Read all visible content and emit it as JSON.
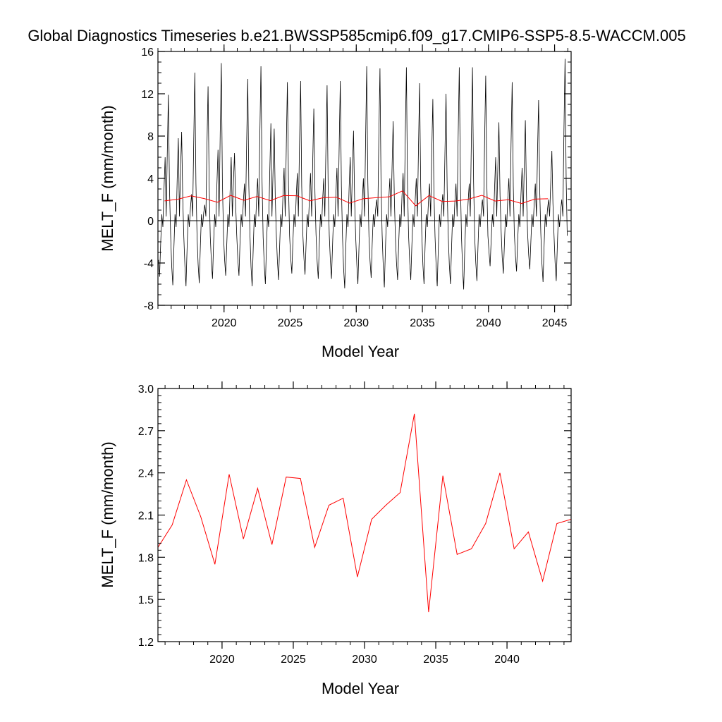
{
  "figure_title": "Global Diagnostics Timeseries b.e21.BWSSP585cmip6.f09_g17.CMIP6-SSP5-8.5-WACCM.005",
  "colors": {
    "monthly": "#000000",
    "annual": "#ff0000",
    "axes": "#000000"
  },
  "chart_data": [
    {
      "type": "line",
      "title": "Global Diagnostics Timeseries b.e21.BWSSP585cmip6.f09_g17.CMIP6-SSP5-8.5-WACCM.005",
      "xlabel": "Model Year",
      "ylabel": "MELT_F (mm/month)",
      "xlim": [
        2015,
        2046.25
      ],
      "ylim": [
        -8,
        16
      ],
      "xticks": [
        2020,
        2025,
        2030,
        2035,
        2040,
        2045
      ],
      "yticks": [
        -8,
        -4,
        0,
        4,
        8,
        12,
        16
      ],
      "reference_line": 0,
      "grid": false,
      "series": [
        {
          "kind": "monthly",
          "color": "#000000",
          "start_year": 2015,
          "months_per_year": 12,
          "yearly_max": [
            11.9,
            8.4,
            14.0,
            12.7,
            14.9,
            6.4,
            13.4,
            14.6,
            8.7,
            13.1,
            13.2,
            10.6,
            12.8,
            13.2,
            8.5,
            14.6,
            14.4,
            9.4,
            14.5,
            13.0,
            11.5,
            12.0,
            14.5,
            14.5,
            13.7,
            9.3,
            13.1,
            9.5,
            11.4,
            6.6,
            15.3
          ],
          "yearly_min": [
            -5.3,
            -6.1,
            -6.2,
            -5.9,
            -5.5,
            -5.2,
            -5.2,
            -6.2,
            -6.0,
            -5.6,
            -5.0,
            -5.1,
            -5.5,
            -5.5,
            -6.4,
            -6.0,
            -5.4,
            -6.3,
            -5.6,
            -5.6,
            -6.0,
            -6.2,
            -6.0,
            -6.5,
            -5.7,
            -4.3,
            -5.0,
            -4.8,
            -4.6,
            -5.8,
            -5.7
          ],
          "yearly_secondary_peak": [
            6.0,
            7.8,
            2.5,
            1.5,
            6.7,
            6.0,
            3.5,
            4.0,
            9.2,
            5.0,
            4.5,
            4.5,
            4.0,
            5.0,
            6.0,
            4.0,
            2.0,
            4.0,
            4.5,
            4.0,
            3.5,
            2.5,
            3.5,
            3.5,
            2.0,
            6.0,
            4.0,
            5.0,
            3.5,
            2.0,
            2.0
          ]
        },
        {
          "kind": "annual",
          "color": "#ff0000",
          "x": [
            2015.5,
            2016.5,
            2017.5,
            2018.5,
            2019.5,
            2020.5,
            2021.5,
            2022.5,
            2023.5,
            2024.5,
            2025.5,
            2026.5,
            2027.5,
            2028.5,
            2029.5,
            2030.5,
            2031.5,
            2032.5,
            2033.5,
            2034.5,
            2035.5,
            2036.5,
            2037.5,
            2038.5,
            2039.5,
            2040.5,
            2041.5,
            2042.5,
            2043.5,
            2044.5
          ],
          "y": [
            1.87,
            2.03,
            2.35,
            2.09,
            1.75,
            2.39,
            1.93,
            2.29,
            1.89,
            2.37,
            2.36,
            1.87,
            2.17,
            2.22,
            1.66,
            2.07,
            2.17,
            2.26,
            2.82,
            1.41,
            2.38,
            1.82,
            1.86,
            2.04,
            2.4,
            1.86,
            1.98,
            1.63,
            2.04,
            2.07
          ]
        }
      ]
    },
    {
      "type": "line",
      "xlabel": "Model Year",
      "ylabel": "MELT_F (mm/month)",
      "xlim": [
        2015.5,
        2044.5
      ],
      "ylim": [
        1.2,
        3.0
      ],
      "xticks": [
        2020,
        2025,
        2030,
        2035,
        2040
      ],
      "yticks": [
        1.2,
        1.5,
        1.8,
        2.1,
        2.4,
        2.7,
        3.0
      ],
      "grid": false,
      "series": [
        {
          "kind": "annual",
          "color": "#ff0000",
          "x": [
            2015.5,
            2016.5,
            2017.5,
            2018.5,
            2019.5,
            2020.5,
            2021.5,
            2022.5,
            2023.5,
            2024.5,
            2025.5,
            2026.5,
            2027.5,
            2028.5,
            2029.5,
            2030.5,
            2031.5,
            2032.5,
            2033.5,
            2034.5,
            2035.5,
            2036.5,
            2037.5,
            2038.5,
            2039.5,
            2040.5,
            2041.5,
            2042.5,
            2043.5,
            2044.5
          ],
          "y": [
            1.87,
            2.03,
            2.35,
            2.09,
            1.75,
            2.39,
            1.93,
            2.29,
            1.89,
            2.37,
            2.36,
            1.87,
            2.17,
            2.22,
            1.66,
            2.07,
            2.17,
            2.26,
            2.82,
            1.41,
            2.38,
            1.82,
            1.86,
            2.04,
            2.4,
            1.86,
            1.98,
            1.63,
            2.04,
            2.07
          ]
        }
      ]
    }
  ]
}
